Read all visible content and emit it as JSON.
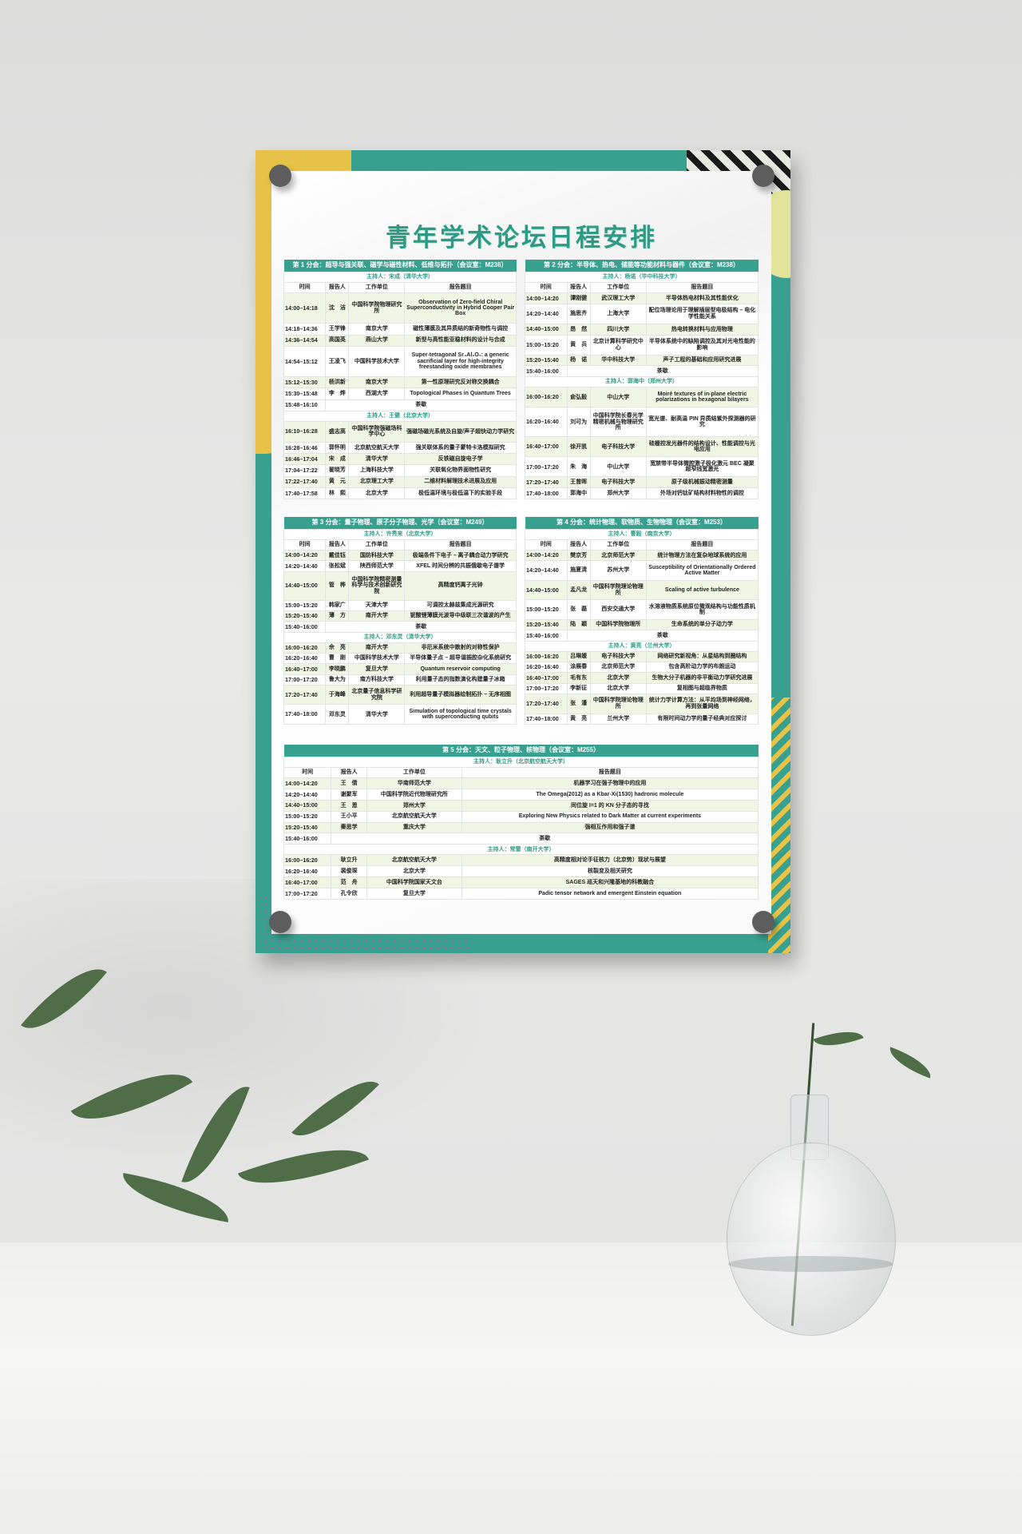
{
  "poster": {
    "title": "青年学术论坛日程安排",
    "colors": {
      "accent": "#38a08e",
      "yellow": "#e8c246",
      "row_alt": "#f1f5e4",
      "host_text": "#2e9a82"
    },
    "columns": [
      "时间",
      "报告人",
      "工作单位",
      "报告题目"
    ],
    "sessions": [
      {
        "title": "第 1 分会：超导与强关联、磁学与磁性材料、低维与拓扑（会议室：M236）",
        "rows": [
          {
            "type": "host",
            "text": "主持人：宋成（清华大学）"
          },
          {
            "type": "talk",
            "cells": [
              "14:00–14:18",
              "沈　洁",
              "中国科学院物理研究所",
              "Observation of Zero-field Chiral Superconductivity in Hybrid Cooper Pair Box"
            ]
          },
          {
            "type": "talk",
            "cells": [
              "14:18–14:36",
              "王学锋",
              "南京大学",
              "磁性薄膜及其异质结的新奇物性与调控"
            ]
          },
          {
            "type": "talk",
            "cells": [
              "14:36–14:54",
              "高国英",
              "燕山大学",
              "新型与高性能亚稳材料的设计与合成"
            ]
          },
          {
            "type": "talk",
            "cells": [
              "14:54–15:12",
              "王凌飞",
              "中国科学技术大学",
              "Super-tetragonal Sr₄Al₂O₇: a generic sacrificial layer for high-integrity freestanding oxide membranes"
            ]
          },
          {
            "type": "talk",
            "cells": [
              "15:12–15:30",
              "杨洪新",
              "南京大学",
              "第一性原理研究反对称交换耦合"
            ]
          },
          {
            "type": "talk",
            "cells": [
              "15:30–15:48",
              "李　烨",
              "西湖大学",
              "Topological Phases in Quantum Trees"
            ]
          },
          {
            "type": "break",
            "time": "15:48–16:10",
            "label": "茶歇"
          },
          {
            "type": "host",
            "text": "主持人：王健（北京大学）"
          },
          {
            "type": "talk",
            "cells": [
              "16:10–16:28",
              "盛志高",
              "中国科学院强磁场科学中心",
              "强磁场磁光系统及自旋/声子超快动力学研究"
            ]
          },
          {
            "type": "talk",
            "cells": [
              "16:28–16:46",
              "郭怀明",
              "北京航空航天大学",
              "强关联体系的量子蒙特卡洛模拟研究"
            ]
          },
          {
            "type": "talk",
            "cells": [
              "16:46–17:04",
              "宋　成",
              "清华大学",
              "反铁磁自旋电子学"
            ]
          },
          {
            "type": "talk",
            "cells": [
              "17:04–17:22",
              "翟晓芳",
              "上海科技大学",
              "关联氧化物界面物性研究"
            ]
          },
          {
            "type": "talk",
            "cells": [
              "17:22–17:40",
              "黄　元",
              "北京理工大学",
              "二维材料解理技术进展及应用"
            ]
          },
          {
            "type": "talk",
            "cells": [
              "17:40–17:58",
              "林　熙",
              "北京大学",
              "极低温环境与极低温下的实验手段"
            ]
          }
        ]
      },
      {
        "title": "第 2 分会：半导体、热电、储能等功能材料与器件（会议室：M238）",
        "rows": [
          {
            "type": "host",
            "text": "主持人：杨诺（华中科技大学）"
          },
          {
            "type": "talk",
            "cells": [
              "14:00–14:20",
              "谭刚健",
              "武汉理工大学",
              "半导体热电材料及其性能优化"
            ]
          },
          {
            "type": "talk",
            "cells": [
              "14:20–14:40",
              "施思齐",
              "上海大学",
              "配位场理论用于理解插层型电极结构 – 电化学性能关系"
            ]
          },
          {
            "type": "talk",
            "cells": [
              "14:40–15:00",
              "昂　然",
              "四川大学",
              "热电转换材料与应用物理"
            ]
          },
          {
            "type": "talk",
            "cells": [
              "15:00–15:20",
              "黄　兵",
              "北京计算科学研究中心",
              "半导体系统中的缺陷调控及其对光电性能的影响"
            ]
          },
          {
            "type": "talk",
            "cells": [
              "15:20–15:40",
              "杨　诺",
              "华中科技大学",
              "声子工程的基础和应用研究进展"
            ]
          },
          {
            "type": "break",
            "time": "15:40–16:00",
            "label": "茶歇"
          },
          {
            "type": "host",
            "text": "主持人：郭海中（郑州大学）"
          },
          {
            "type": "talk",
            "cells": [
              "16:00–16:20",
              "俞弘毅",
              "中山大学",
              "Moiré textures of in-plane electric polarizations in hexagonal bilayers"
            ]
          },
          {
            "type": "talk",
            "cells": [
              "16:20–16:40",
              "刘可为",
              "中国科学院长春光学精密机械与物理研究所",
              "宽光谱、耐高温 PIN 异质结紫外探测器的研究"
            ]
          },
          {
            "type": "talk",
            "cells": [
              "16:40–17:00",
              "徐开凯",
              "电子科技大学",
              "硅栅控发光器件的结构设计、性能调控与光电应用"
            ]
          },
          {
            "type": "talk",
            "cells": [
              "17:00–17:20",
              "朱　海",
              "中山大学",
              "宽禁带半导体微腔激子极化激元 BEC 凝聚超窄线宽激光"
            ]
          },
          {
            "type": "talk",
            "cells": [
              "17:20–17:40",
              "王曾晖",
              "电子科技大学",
              "原子级机械振动精密测量"
            ]
          },
          {
            "type": "talk",
            "cells": [
              "17:40–18:00",
              "郭海中",
              "郑州大学",
              "外场对钙钛矿结构材料物性的调控"
            ]
          }
        ]
      },
      {
        "title": "第 3 分会：量子物理、原子分子物理、光学（会议室：M249）",
        "rows": [
          {
            "type": "host",
            "text": "主持人：许秀来（北京大学）"
          },
          {
            "type": "talk",
            "cells": [
              "14:00–14:20",
              "戴佳钰",
              "国防科技大学",
              "极端条件下电子 – 离子耦合动力学研究"
            ]
          },
          {
            "type": "talk",
            "cells": [
              "14:20–14:40",
              "张松斌",
              "陕西师范大学",
              "XFEL 时间分辨的共振俄歇电子谱学"
            ]
          },
          {
            "type": "talk",
            "cells": [
              "14:40–15:00",
              "管　桦",
              "中国科学院精密测量科学与技术创新研究院",
              "高精度钙离子光钟"
            ]
          },
          {
            "type": "talk",
            "cells": [
              "15:00–15:20",
              "韩家广",
              "天津大学",
              "可调控太赫兹集成光源研究"
            ]
          },
          {
            "type": "talk",
            "cells": [
              "15:20–15:40",
              "薄　方",
              "南开大学",
              "铌酸锂薄膜光波导中级联三次谐波的产生"
            ]
          },
          {
            "type": "break",
            "time": "15:40–16:00",
            "label": "茶歇"
          },
          {
            "type": "host",
            "text": "主持人：邓东灵（清华大学）"
          },
          {
            "type": "talk",
            "cells": [
              "16:00–16:20",
              "佘　亮",
              "南开大学",
              "非厄米系统中散射的对称性保护"
            ]
          },
          {
            "type": "talk",
            "cells": [
              "16:20–16:40",
              "曹　刚",
              "中国科学技术大学",
              "半导体量子点 – 超导谐振腔杂化系统研究"
            ]
          },
          {
            "type": "talk",
            "cells": [
              "16:40–17:00",
              "李晓鹏",
              "复旦大学",
              "Quantum reservoir computing"
            ]
          },
          {
            "type": "talk",
            "cells": [
              "17:00–17:20",
              "鲁大为",
              "南方科技大学",
              "利用量子态的指数演化构建量子冰箱"
            ]
          },
          {
            "type": "talk",
            "cells": [
              "17:20–17:40",
              "于海峰",
              "北京量子信息科学研究院",
              "利用超导量子模拟器绘制拓扑 – 无序相图"
            ]
          },
          {
            "type": "talk",
            "cells": [
              "17:40–18:00",
              "邓东灵",
              "清华大学",
              "Simulation of topological time crystals with superconducting qubits"
            ]
          }
        ]
      },
      {
        "title": "第 4 分会：统计物理、软物质、生物物理（会议室：M253）",
        "rows": [
          {
            "type": "host",
            "text": "主持人：曹毅（南京大学）"
          },
          {
            "type": "talk",
            "cells": [
              "14:00–14:20",
              "樊京芳",
              "北京师范大学",
              "统计物理方法在复杂地球系统的应用"
            ]
          },
          {
            "type": "talk",
            "cells": [
              "14:20–14:40",
              "施夏清",
              "苏州大学",
              "Susceptibility of Orientationally Ordered Active Matter"
            ]
          },
          {
            "type": "talk",
            "cells": [
              "14:40–15:00",
              "孟凡龙",
              "中国科学院理论物理所",
              "Scaling of active turbulence"
            ]
          },
          {
            "type": "talk",
            "cells": [
              "15:00–15:20",
              "张　磊",
              "西安交通大学",
              "水溶液物质系统原位微观结构与功能性质机制"
            ]
          },
          {
            "type": "talk",
            "cells": [
              "15:20–15:40",
              "陆　颖",
              "中国科学院物理所",
              "生命系统的单分子动力学"
            ]
          },
          {
            "type": "break",
            "time": "15:40–16:00",
            "label": "茶歇"
          },
          {
            "type": "host",
            "text": "主持人：黄亮（兰州大学）"
          },
          {
            "type": "talk",
            "cells": [
              "16:00–16:20",
              "吕琳媛",
              "电子科技大学",
              "网络研究新视角：从星结构到圈结构"
            ]
          },
          {
            "type": "talk",
            "cells": [
              "16:20–16:40",
              "涂展春",
              "北京师范大学",
              "包含高阶动力学的布朗运动"
            ]
          },
          {
            "type": "talk",
            "cells": [
              "16:40–17:00",
              "毛有东",
              "北京大学",
              "生物大分子机器的非平衡动力学研究进展"
            ]
          },
          {
            "type": "talk",
            "cells": [
              "17:00–17:20",
              "李新征",
              "北京大学",
              "复相图与超临界物质"
            ]
          },
          {
            "type": "talk",
            "cells": [
              "17:20–17:40",
              "张　潘",
              "中国科学院理论物理所",
              "统计力学计算方法：从平均场到神经网络，再到张量网络"
            ]
          },
          {
            "type": "talk",
            "cells": [
              "17:40–18:00",
              "黄　亮",
              "兰州大学",
              "有限时间动力学的量子经典对应探讨"
            ]
          }
        ]
      },
      {
        "title": "第 5 分会：天文、粒子物理、核物理（会议室：M255）",
        "rows": [
          {
            "type": "host",
            "text": "主持人：耿立升（北京航空航天大学）"
          },
          {
            "type": "talk",
            "cells": [
              "14:00–14:20",
              "王　倩",
              "华南师范大学",
              "机器学习在强子物理中的应用"
            ]
          },
          {
            "type": "talk",
            "cells": [
              "14:20–14:40",
              "谢聚军",
              "中国科学院近代物理研究所",
              "The Omega(2012) as a Kbar-Xi(1530) hadronic molecule"
            ]
          },
          {
            "type": "talk",
            "cells": [
              "14:40–15:00",
              "王　恩",
              "郑州大学",
              "同位旋 I=1 的 KN 分子态的寻找"
            ]
          },
          {
            "type": "talk",
            "cells": [
              "15:00–15:20",
              "王小平",
              "北京航空航天大学",
              "Exploring New Physics related to Dark Matter at current experiments"
            ]
          },
          {
            "type": "talk",
            "cells": [
              "15:20–15:40",
              "秦思学",
              "重庆大学",
              "强相互作用和强子谱"
            ]
          },
          {
            "type": "break",
            "time": "15:40–16:00",
            "label": "茶歇"
          },
          {
            "type": "host",
            "text": "主持人：常雷（南开大学）"
          },
          {
            "type": "talk",
            "cells": [
              "16:00–16:20",
              "耿立升",
              "北京航空航天大学",
              "高精度相对论手征核力（北京势）现状与展望"
            ]
          },
          {
            "type": "talk",
            "cells": [
              "16:20–16:40",
              "裴俊琛",
              "北京大学",
              "核裂变及相关研究"
            ]
          },
          {
            "type": "talk",
            "cells": [
              "16:40–17:00",
              "范　舟",
              "中国科学院国家天文台",
              "SAGES 巡天和兴隆基地的科教融合"
            ]
          },
          {
            "type": "talk",
            "cells": [
              "17:00–17:20",
              "孔令欣",
              "复旦大学",
              "Padic tensor network and emergent Einstein equation"
            ]
          }
        ]
      }
    ]
  }
}
